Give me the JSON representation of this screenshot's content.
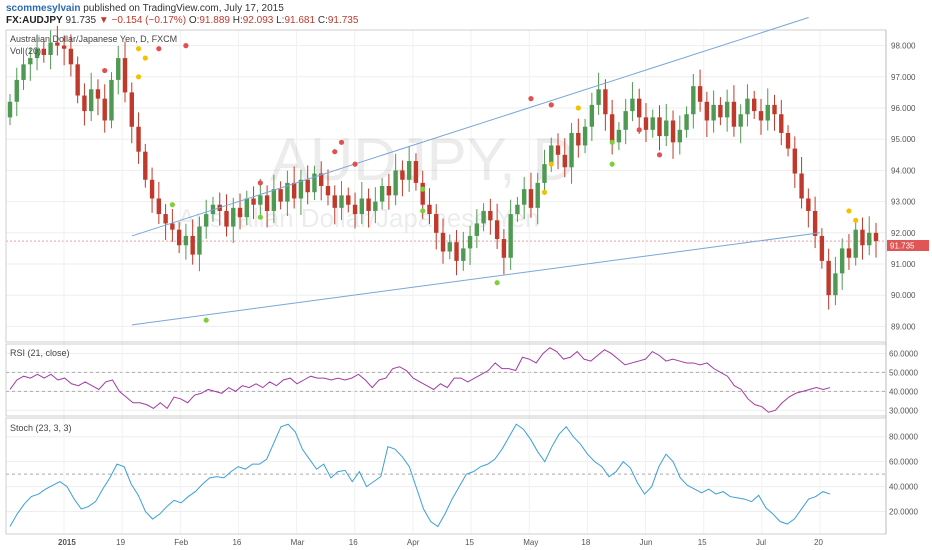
{
  "header": {
    "user": "scommesylvain",
    "published": "published on TradingView.com, July 17, 2015",
    "symbol": "FX:AUDJPY",
    "last": "91.735",
    "arrow": "▼",
    "change": "−0.154 (−0.17%)",
    "o_label": "O:",
    "o_value": "91.889",
    "h_label": "H:",
    "h_value": "92.093",
    "l_label": "L:",
    "l_value": "91.681",
    "c_label": "C:",
    "c_value": "91.735"
  },
  "panels": {
    "main_title": "Australian Dollar/Japanese Yen, D, FXCM",
    "vol_title": "Vol (20)",
    "rsi_title": "RSI (21, close)",
    "stoch_title": "Stoch (23, 3, 3)",
    "watermark_symbol": "AUDJPY, D",
    "watermark_name": "Australian Dollar/Japanese Yen",
    "last_price_tag": "91.735"
  },
  "colors": {
    "up": "#4e9a52",
    "down": "#c0392b",
    "trendline": "#7aa6d8",
    "rsi": "#a43aa4",
    "stoch": "#3aa0d8",
    "dot_red": "#e05050",
    "dot_yellow": "#f2c200",
    "dot_green": "#7dcf3c"
  },
  "chart_data": [
    {
      "type": "candlestick",
      "title": "Australian Dollar/Japanese Yen, D, FXCM",
      "y_ticks": [
        "98.000",
        "97.000",
        "96.000",
        "95.000",
        "94.000",
        "93.000",
        "92.000",
        "91.000",
        "90.000",
        "89.000"
      ],
      "ylim": [
        88.5,
        98.5
      ],
      "x_ticks": [
        "2015",
        "19",
        "Feb",
        "16",
        "Mar",
        "16",
        "Apr",
        "15",
        "May",
        "18",
        "Jun",
        "15",
        "Jul",
        "20"
      ],
      "close_series": [
        96.2,
        96.9,
        97.4,
        97.6,
        97.9,
        97.7,
        98.1,
        98.0,
        97.9,
        97.4,
        96.4,
        95.9,
        96.6,
        96.3,
        95.6,
        96.9,
        97.6,
        96.5,
        95.4,
        94.6,
        93.7,
        93.1,
        92.6,
        92.3,
        92.1,
        91.6,
        91.9,
        91.3,
        92.2,
        92.6,
        92.9,
        92.7,
        92.2,
        92.8,
        92.5,
        93.1,
        92.9,
        93.2,
        92.7,
        93.4,
        93.0,
        93.6,
        93.1,
        93.7,
        93.3,
        93.9,
        93.5,
        93.2,
        92.8,
        93.2,
        92.9,
        92.6,
        93.1,
        92.7,
        93.0,
        93.5,
        93.2,
        94.0,
        93.7,
        94.3,
        93.6,
        92.9,
        92.6,
        92.0,
        91.4,
        91.7,
        91.1,
        91.5,
        91.9,
        92.3,
        92.7,
        92.4,
        91.8,
        91.2,
        92.6,
        92.9,
        93.4,
        92.8,
        93.6,
        94.2,
        94.8,
        94.5,
        94.1,
        95.2,
        94.8,
        95.4,
        96.1,
        96.6,
        95.8,
        94.9,
        95.3,
        95.9,
        96.3,
        95.7,
        95.3,
        95.7,
        95.1,
        95.6,
        94.9,
        95.3,
        95.8,
        96.7,
        96.2,
        95.6,
        96.1,
        95.7,
        96.2,
        95.4,
        95.8,
        96.3,
        95.9,
        95.6,
        96.1,
        95.8,
        95.2,
        94.7,
        93.9,
        93.1,
        92.7,
        91.9,
        91.1,
        90.0,
        90.7,
        91.5,
        91.2,
        92.1,
        91.6,
        92.0,
        91.735
      ],
      "annotations": {
        "trendlines": [
          {
            "from": [
              "2015-01-19",
              91.9
            ],
            "to": [
              "2015-07-17",
              98.9
            ]
          },
          {
            "from": [
              "2015-01-19",
              89.05
            ],
            "to": [
              "2015-07-20",
              92.0
            ]
          }
        ],
        "dots": [
          {
            "color": "red",
            "level": 97.2
          },
          {
            "color": "yellow",
            "level": 97.9
          },
          {
            "color": "yellow",
            "level": 97.0
          },
          {
            "color": "yellow",
            "level": 97.6
          },
          {
            "color": "red",
            "level": 97.9
          },
          {
            "color": "red",
            "level": 98.0
          },
          {
            "color": "green",
            "level": 92.9
          },
          {
            "color": "green",
            "level": 89.2
          },
          {
            "color": "red",
            "level": 93.6
          },
          {
            "color": "green",
            "level": 92.5
          },
          {
            "color": "red",
            "level": 94.6
          },
          {
            "color": "red",
            "level": 94.9
          },
          {
            "color": "red",
            "level": 94.2
          },
          {
            "color": "green",
            "level": 92.7
          },
          {
            "color": "yellow",
            "level": 93.3
          },
          {
            "color": "red",
            "level": 96.3
          },
          {
            "color": "yellow",
            "level": 94.2
          },
          {
            "color": "green",
            "level": 93.4
          },
          {
            "color": "red",
            "level": 96.1
          },
          {
            "color": "yellow",
            "level": 96.0
          },
          {
            "color": "green",
            "level": 94.9
          },
          {
            "color": "green",
            "level": 94.2
          },
          {
            "color": "red",
            "level": 95.3
          },
          {
            "color": "red",
            "level": 94.5
          },
          {
            "color": "yellow",
            "level": 92.7
          },
          {
            "color": "yellow",
            "level": 92.4
          },
          {
            "color": "green",
            "level": 90.4
          }
        ]
      }
    },
    {
      "type": "line",
      "title": "RSI (21, close)",
      "y_ticks": [
        "60.0000",
        "50.0000",
        "40.0000",
        "30.0000"
      ],
      "ylim": [
        27,
        65
      ],
      "values": [
        41,
        46,
        48,
        47,
        49,
        47,
        49,
        46,
        47,
        44,
        43,
        45,
        43,
        41,
        45,
        46,
        40,
        37,
        34,
        34,
        33,
        31,
        34,
        31,
        37,
        36,
        34,
        38,
        39,
        41,
        40,
        39,
        42,
        40,
        43,
        42,
        44,
        42,
        45,
        43,
        46,
        47,
        44,
        46,
        48,
        47,
        47,
        46,
        47,
        46,
        47,
        49,
        46,
        42,
        46,
        47,
        52,
        53,
        51,
        47,
        45,
        43,
        41,
        44,
        42,
        47,
        47,
        45,
        47,
        49,
        51,
        55,
        52,
        52,
        51,
        58,
        57,
        55,
        60,
        63,
        61,
        57,
        58,
        61,
        57,
        56,
        59,
        62,
        60,
        57,
        54,
        55,
        56,
        57,
        61,
        59,
        56,
        57,
        56,
        55,
        55,
        54,
        55,
        52,
        50,
        48,
        43,
        41,
        36,
        33,
        32,
        29,
        30,
        34,
        37,
        39,
        40,
        41,
        42,
        41,
        42
      ],
      "hlines": [
        50,
        40
      ]
    },
    {
      "type": "line",
      "title": "Stoch (23, 3, 3)",
      "y_ticks": [
        "80.0000",
        "60.0000",
        "40.0000",
        "20.0000"
      ],
      "ylim": [
        2,
        95
      ],
      "values": [
        8,
        18,
        26,
        32,
        34,
        38,
        41,
        44,
        40,
        30,
        22,
        24,
        28,
        38,
        47,
        58,
        56,
        42,
        33,
        20,
        14,
        18,
        24,
        29,
        27,
        32,
        36,
        42,
        47,
        48,
        47,
        52,
        56,
        54,
        58,
        58,
        62,
        75,
        88,
        90,
        84,
        70,
        62,
        54,
        58,
        47,
        52,
        53,
        44,
        52,
        40,
        44,
        48,
        72,
        70,
        64,
        56,
        39,
        22,
        12,
        8,
        18,
        30,
        40,
        50,
        52,
        56,
        58,
        62,
        70,
        80,
        90,
        86,
        78,
        68,
        60,
        72,
        82,
        88,
        80,
        74,
        66,
        60,
        56,
        48,
        52,
        60,
        55,
        43,
        34,
        40,
        56,
        66,
        60,
        47,
        41,
        38,
        35,
        38,
        34,
        36,
        32,
        31,
        30,
        28,
        33,
        23,
        18,
        12,
        10,
        14,
        22,
        30,
        32,
        36,
        34
      ]
    }
  ]
}
